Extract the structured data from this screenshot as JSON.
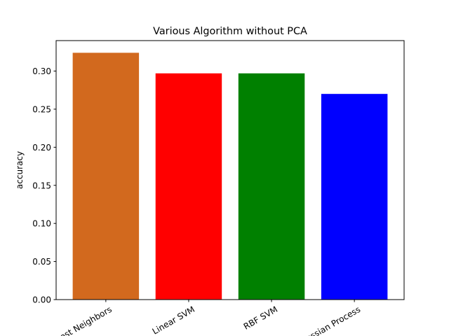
{
  "chart_data": {
    "type": "bar",
    "title": "Various Algorithm without PCA",
    "xlabel": "",
    "ylabel": "accuracy",
    "categories": [
      "Nearest Neighbors",
      "Linear SVM",
      "RBF SVM",
      "Gaussian Process"
    ],
    "values": [
      0.324,
      0.297,
      0.297,
      0.27
    ],
    "colors": [
      "#d2691e",
      "#ff0000",
      "#008000",
      "#0000ff"
    ],
    "ylim": [
      0,
      0.34
    ],
    "yticks": [
      0.0,
      0.05,
      0.1,
      0.15,
      0.2,
      0.25,
      0.3
    ],
    "ytick_labels": [
      "0.00",
      "0.05",
      "0.10",
      "0.15",
      "0.20",
      "0.25",
      "0.30"
    ],
    "xtick_rotation": 30,
    "grid": false,
    "legend": "none"
  }
}
